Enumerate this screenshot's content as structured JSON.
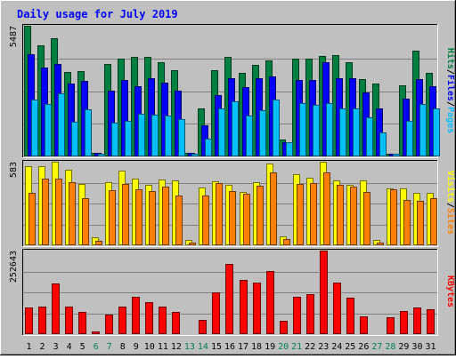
{
  "title": "Daily usage for July 2019",
  "colors": {
    "background": "#c0c0c0",
    "title": "#0000ff",
    "hits": "#008040",
    "files": "#0000ff",
    "pages": "#00c0ff",
    "visits": "#ffff00",
    "sites": "#ff8000",
    "kbytes": "#ff0000",
    "weekend": "#00805c",
    "weekday": "#000000"
  },
  "chart_data": [
    {
      "type": "bar",
      "panel": "hits-files-pages",
      "ymax_label": "5487",
      "ylim": [
        0,
        5487
      ],
      "legend": [
        {
          "key": "pages",
          "label": "Pages"
        },
        {
          "key": "sep1",
          "label": "/"
        },
        {
          "key": "files",
          "label": "Files"
        },
        {
          "key": "sep2",
          "label": "/"
        },
        {
          "key": "hits",
          "label": "Hits"
        }
      ],
      "series": [
        {
          "name": "Hits",
          "color_key": "hits",
          "values": [
            5487,
            4650,
            4950,
            3530,
            3600,
            150,
            3870,
            4100,
            4180,
            4190,
            3960,
            3620,
            150,
            2000,
            3630,
            4170,
            3500,
            3850,
            4030,
            700,
            4120,
            4120,
            4230,
            4270,
            3950,
            3260,
            3050,
            120,
            2980,
            4450,
            3510
          ]
        },
        {
          "name": "Files",
          "color_key": "files",
          "values": [
            4280,
            3750,
            3900,
            3060,
            3180,
            150,
            2750,
            3220,
            2950,
            3300,
            3100,
            2780,
            150,
            1300,
            2580,
            3270,
            2910,
            3300,
            3370,
            600,
            3220,
            3200,
            3940,
            3270,
            3290,
            2690,
            2000,
            120,
            2420,
            3230,
            2940
          ]
        },
        {
          "name": "Pages",
          "color_key": "pages",
          "values": [
            2400,
            2200,
            2650,
            1450,
            1960,
            100,
            1400,
            1510,
            1800,
            1770,
            1700,
            1550,
            100,
            760,
            2000,
            2300,
            1700,
            1950,
            2400,
            600,
            2250,
            2150,
            2250,
            2000,
            2000,
            1650,
            1000,
            100,
            1490,
            2200,
            2000
          ]
        }
      ]
    },
    {
      "type": "bar",
      "panel": "visits-sites",
      "ymax_label": "583",
      "ylim": [
        0,
        583
      ],
      "legend": [
        {
          "key": "sites",
          "label": "Sites"
        },
        {
          "key": "sep1",
          "label": "/"
        },
        {
          "key": "visits",
          "label": "Visits"
        }
      ],
      "series": [
        {
          "name": "Visits",
          "color_key": "visits",
          "values": [
            550,
            555,
            580,
            528,
            426,
            57,
            440,
            520,
            463,
            423,
            458,
            452,
            37,
            406,
            445,
            420,
            370,
            443,
            570,
            62,
            498,
            472,
            583,
            450,
            423,
            455,
            36,
            400,
            394,
            366,
            363
          ]
        },
        {
          "name": "Sites",
          "color_key": "sites",
          "values": [
            367,
            464,
            465,
            440,
            331,
            30,
            385,
            431,
            393,
            377,
            411,
            346,
            19,
            350,
            436,
            376,
            358,
            418,
            509,
            45,
            431,
            436,
            507,
            419,
            408,
            374,
            20,
            391,
            314,
            308,
            329
          ]
        }
      ]
    },
    {
      "type": "bar",
      "panel": "kbytes",
      "ymax_label": "252643",
      "ylim": [
        0,
        252643
      ],
      "legend": [
        {
          "key": "kbytes",
          "label": "KBytes"
        }
      ],
      "series": [
        {
          "name": "KBytes",
          "color_key": "kbytes",
          "values": [
            80000,
            83000,
            153000,
            83000,
            66000,
            8000,
            58000,
            83000,
            112000,
            98000,
            82000,
            68000,
            3000,
            43000,
            127000,
            212000,
            164000,
            157000,
            190000,
            39000,
            113000,
            122000,
            252643,
            155000,
            111000,
            55000,
            4000,
            52000,
            71000,
            81000,
            74000
          ]
        }
      ]
    }
  ],
  "days": [
    {
      "label": "1",
      "weekend": false
    },
    {
      "label": "2",
      "weekend": false
    },
    {
      "label": "3",
      "weekend": false
    },
    {
      "label": "4",
      "weekend": false
    },
    {
      "label": "5",
      "weekend": false
    },
    {
      "label": "6",
      "weekend": true
    },
    {
      "label": "7",
      "weekend": true
    },
    {
      "label": "8",
      "weekend": false
    },
    {
      "label": "9",
      "weekend": false
    },
    {
      "label": "10",
      "weekend": false
    },
    {
      "label": "11",
      "weekend": false
    },
    {
      "label": "12",
      "weekend": false
    },
    {
      "label": "13",
      "weekend": true
    },
    {
      "label": "14",
      "weekend": true
    },
    {
      "label": "15",
      "weekend": false
    },
    {
      "label": "16",
      "weekend": false
    },
    {
      "label": "17",
      "weekend": false
    },
    {
      "label": "18",
      "weekend": false
    },
    {
      "label": "19",
      "weekend": false
    },
    {
      "label": "20",
      "weekend": true
    },
    {
      "label": "21",
      "weekend": true
    },
    {
      "label": "22",
      "weekend": false
    },
    {
      "label": "23",
      "weekend": false
    },
    {
      "label": "24",
      "weekend": false
    },
    {
      "label": "25",
      "weekend": false
    },
    {
      "label": "26",
      "weekend": false
    },
    {
      "label": "27",
      "weekend": true
    },
    {
      "label": "28",
      "weekend": true
    },
    {
      "label": "29",
      "weekend": false
    },
    {
      "label": "30",
      "weekend": false
    },
    {
      "label": "31",
      "weekend": false
    }
  ]
}
